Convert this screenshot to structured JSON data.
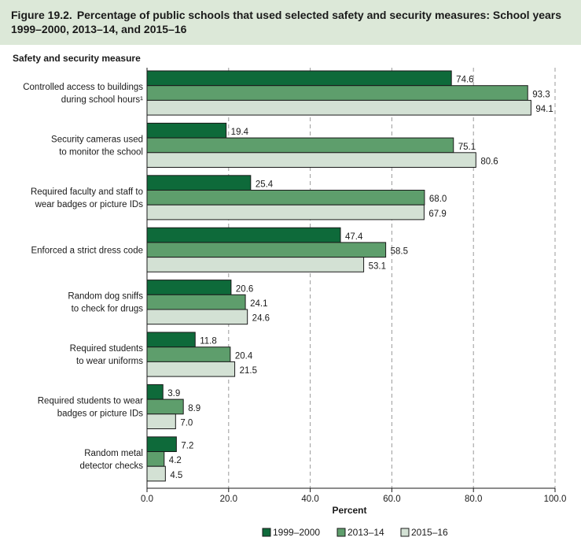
{
  "figure": {
    "number": "Figure 19.2.",
    "title": "Percentage of public schools that used selected safety and security measures: School years 1999–2000, 2013–14, and 2015–16"
  },
  "chart_data": {
    "type": "bar",
    "orientation": "horizontal",
    "ylabel": "Safety and security measure",
    "xlabel": "Percent",
    "xlim": [
      0,
      100
    ],
    "ticks": [
      "0.0",
      "20.0",
      "40.0",
      "60.0",
      "80.0",
      "100.0"
    ],
    "grid": "vertical dashed",
    "legend_position": "bottom-center",
    "categories": [
      [
        "Controlled access to buildings",
        "during school hours¹"
      ],
      [
        "Security cameras used",
        "to monitor the school"
      ],
      [
        "Required faculty and staff to",
        "wear badges or picture IDs"
      ],
      [
        "Enforced a strict dress code"
      ],
      [
        "Random dog sniffs",
        "to check for drugs"
      ],
      [
        "Required students",
        "to wear uniforms"
      ],
      [
        "Required students to wear",
        "badges or picture IDs"
      ],
      [
        "Random metal",
        "detector checks"
      ]
    ],
    "series": [
      {
        "name": "1999–2000",
        "color": "#0e6a3a",
        "values": [
          74.6,
          19.4,
          25.4,
          47.4,
          20.6,
          11.8,
          3.9,
          7.2
        ],
        "labels": [
          "74.6",
          "19.4",
          "25.4",
          "47.4",
          "20.6",
          "11.8",
          "3.9",
          "7.2"
        ]
      },
      {
        "name": "2013–14",
        "color": "#5e9e6c",
        "values": [
          93.3,
          75.1,
          68.0,
          58.5,
          24.1,
          20.4,
          8.9,
          4.2
        ],
        "labels": [
          "93.3",
          "75.1",
          "68.0",
          "58.5",
          "24.1",
          "20.4",
          "8.9",
          "4.2"
        ]
      },
      {
        "name": "2015–16",
        "color": "#d3e1d4",
        "values": [
          94.1,
          80.6,
          67.9,
          53.1,
          24.6,
          21.5,
          7.0,
          4.5
        ],
        "labels": [
          "94.1",
          "80.6",
          "67.9",
          "53.1",
          "24.6",
          "21.5",
          "7.0",
          "4.5"
        ]
      }
    ]
  }
}
